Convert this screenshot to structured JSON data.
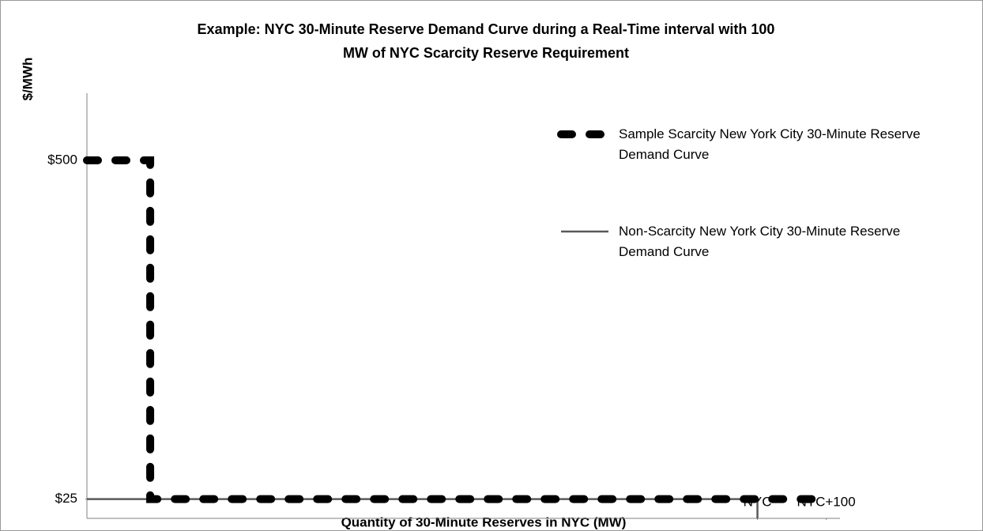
{
  "chart_data": {
    "type": "line",
    "step": true,
    "title": "Example: NYC 30-Minute Reserve Demand Curve during a Real-Time interval with 100 MW of NYC Scarcity Reserve Requirement",
    "y_label": "$/MWh",
    "x_label": "Quantity of 30-Minute Reserves in NYC (MW)",
    "xlim": [
      -975,
      120
    ],
    "xticks": [
      {
        "value": 0,
        "label": "NYC"
      },
      {
        "value": 100,
        "label": "NYC+100"
      }
    ],
    "ylim": [
      -2,
      594
    ],
    "yticks": [
      {
        "value": 25,
        "label": "$25"
      },
      {
        "value": 500,
        "label": "$500"
      }
    ],
    "grid": false,
    "legend": "upper right",
    "series": [
      {
        "name": "Sample Scarcity New York City 30-Minute Reserve Demand Curve",
        "color": "#000000",
        "style": "dashed",
        "x": [
          -975,
          -883,
          -883,
          100
        ],
        "values": [
          500,
          500,
          25,
          25
        ]
      },
      {
        "name": "Non-Scarcity New York City 30-Minute Reserve Demand Curve",
        "color": "#595959",
        "style": "solid",
        "x": [
          -975,
          0,
          0
        ],
        "values": [
          25,
          25,
          -2
        ]
      }
    ]
  }
}
